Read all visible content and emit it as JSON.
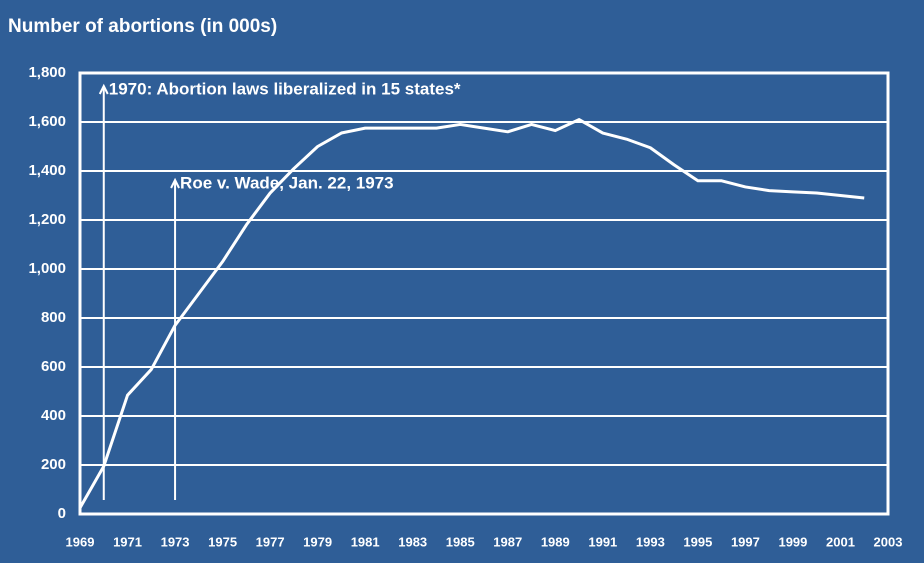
{
  "chart_data": {
    "type": "line",
    "title": "Number of abortions (in 000s)",
    "x": [
      1969,
      1970,
      1971,
      1972,
      1973,
      1974,
      1975,
      1976,
      1977,
      1978,
      1979,
      1980,
      1981,
      1982,
      1983,
      1984,
      1985,
      1986,
      1987,
      1988,
      1989,
      1990,
      1991,
      1992,
      1993,
      1994,
      1995,
      1996,
      1997,
      1998,
      1999,
      2000,
      2001,
      2002
    ],
    "series": [
      {
        "name": "Abortions",
        "color": "#ffffff",
        "values": [
          25,
          195,
          485,
          590,
          770,
          900,
          1030,
          1180,
          1310,
          1410,
          1500,
          1555,
          1575,
          1575,
          1575,
          1575,
          1590,
          1575,
          1560,
          1590,
          1565,
          1610,
          1555,
          1530,
          1495,
          1425,
          1360,
          1360,
          1335,
          1320,
          1315,
          1310,
          1300,
          1290
        ]
      }
    ],
    "xlim": [
      1969,
      2003
    ],
    "xticks": [
      1969,
      1971,
      1973,
      1975,
      1977,
      1979,
      1981,
      1983,
      1985,
      1987,
      1989,
      1991,
      1993,
      1995,
      1997,
      1999,
      2001,
      2003
    ],
    "ylim": [
      0,
      1800
    ],
    "yticks": [
      0,
      200,
      400,
      600,
      800,
      {
        "value": 1000,
        "label": "1,000"
      },
      {
        "value": 1200,
        "label": "1,200"
      },
      {
        "value": 1400,
        "label": "1,400"
      },
      {
        "value": 1600,
        "label": "1,600"
      },
      {
        "value": 1800,
        "label": "1,800"
      }
    ],
    "grid": true,
    "annotations": [
      {
        "text": "1970: Abortion laws liberalized in 15 states*",
        "x": 1970
      },
      {
        "text": "Roe v. Wade, Jan. 22, 1973",
        "x": 1973
      }
    ]
  }
}
